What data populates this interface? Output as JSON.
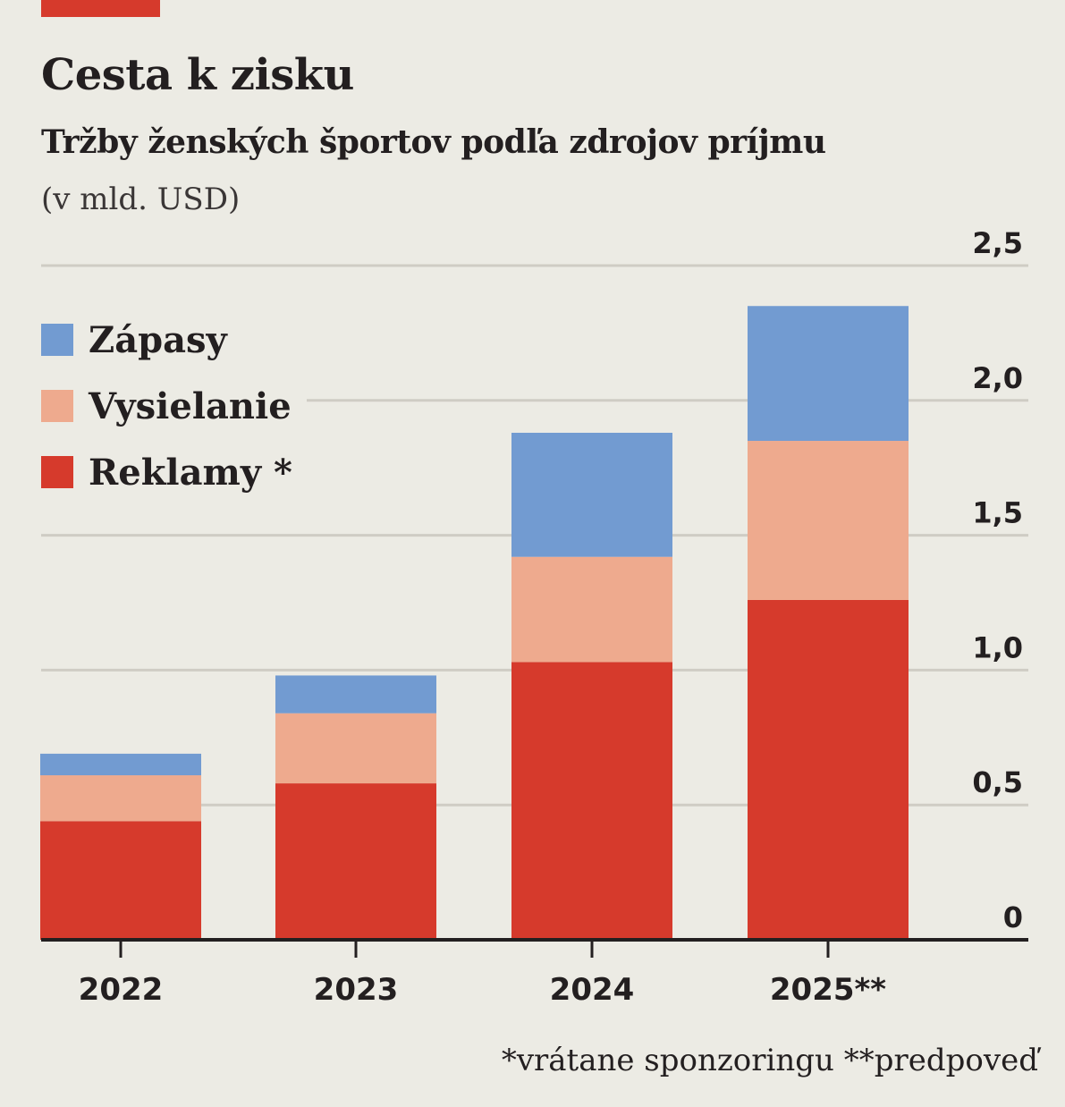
{
  "title": "Cesta k zisku",
  "subtitle": "Tržby ženských športov podľa zdrojov príjmu",
  "unit": "(v mld. USD)",
  "footnote": "*vrátane sponzoringu **predpoveď",
  "colors": {
    "accent": "#d63a2c",
    "Reklamy": "#d63a2c",
    "Vysielanie": "#eeaa8e",
    "Zapasy": "#729bd1",
    "grid": "#cfccc4",
    "axis": "#231f20",
    "background": "#ecebe4"
  },
  "legend": [
    {
      "name": "Zápasy",
      "color": "#729bd1"
    },
    {
      "name": "Vysielanie",
      "color": "#eeaa8e"
    },
    {
      "name": "Reklamy *",
      "color": "#d63a2c"
    }
  ],
  "chart_data": {
    "type": "bar",
    "stacked": true,
    "categories": [
      "2022",
      "2023",
      "2024",
      "2025**"
    ],
    "series": [
      {
        "name": "Reklamy *",
        "values": [
          0.44,
          0.58,
          1.03,
          1.26
        ]
      },
      {
        "name": "Vysielanie",
        "values": [
          0.17,
          0.26,
          0.39,
          0.59
        ]
      },
      {
        "name": "Zápasy",
        "values": [
          0.08,
          0.14,
          0.46,
          0.5
        ]
      }
    ],
    "yticks": [
      "0",
      "0,5",
      "1,0",
      "1,5",
      "2,0",
      "2,5"
    ],
    "ytick_values": [
      0,
      0.5,
      1.0,
      1.5,
      2.0,
      2.5
    ],
    "ylim": [
      0,
      2.5
    ],
    "grid": true,
    "y_axis_side": "right",
    "legend_position": "top-left",
    "xlabel": "",
    "ylabel": ""
  }
}
